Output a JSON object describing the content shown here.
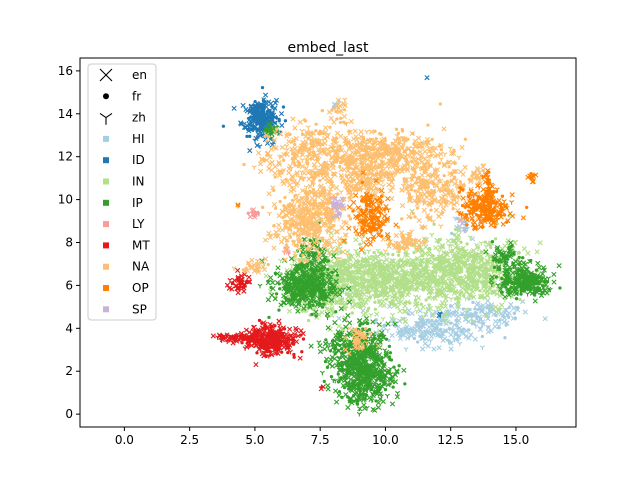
{
  "chart_data": {
    "type": "scatter",
    "title": "embed_last",
    "xlabel": "",
    "ylabel": "",
    "xlim": [
      -1.7,
      17.3
    ],
    "ylim": [
      -0.6,
      16.6
    ],
    "xticks": [
      0.0,
      2.5,
      5.0,
      7.5,
      10.0,
      12.5,
      15.0
    ],
    "xtick_labels": [
      "0.0",
      "2.5",
      "5.0",
      "7.5",
      "10.0",
      "12.5",
      "15.0"
    ],
    "yticks": [
      0,
      2,
      4,
      6,
      8,
      10,
      12,
      14,
      16
    ],
    "ytick_labels": [
      "0",
      "2",
      "4",
      "6",
      "8",
      "10",
      "12",
      "14",
      "16"
    ],
    "grid": false,
    "legend_position": "upper-left",
    "marker_legend": [
      {
        "label": "en",
        "marker": "x"
      },
      {
        "label": "fr",
        "marker": "circle"
      },
      {
        "label": "zh",
        "marker": "tri-down"
      }
    ],
    "series": [
      {
        "name": "HI",
        "color": "#a6cee3",
        "clusters": [
          {
            "cx": 11.7,
            "cy": 4.0,
            "sx": 1.0,
            "sy": 0.4,
            "n": 200
          },
          {
            "cx": 13.5,
            "cy": 4.6,
            "sx": 0.8,
            "sy": 0.4,
            "n": 120
          },
          {
            "cx": 8.1,
            "cy": 14.5,
            "sx": 0.1,
            "sy": 0.15,
            "n": 6
          },
          {
            "cx": 12.8,
            "cy": 8.7,
            "sx": 0.3,
            "sy": 0.2,
            "n": 15
          }
        ]
      },
      {
        "name": "ID",
        "color": "#1f78b4",
        "clusters": [
          {
            "cx": 5.2,
            "cy": 13.8,
            "sx": 0.35,
            "sy": 0.45,
            "n": 260
          },
          {
            "cx": 11.6,
            "cy": 15.7,
            "sx": 0.02,
            "sy": 0.02,
            "n": 1
          },
          {
            "cx": 12.1,
            "cy": 4.6,
            "sx": 0.05,
            "sy": 0.05,
            "n": 3
          }
        ]
      },
      {
        "name": "IN",
        "color": "#b2df8a",
        "clusters": [
          {
            "cx": 10.0,
            "cy": 6.3,
            "sx": 1.4,
            "sy": 0.75,
            "n": 700
          },
          {
            "cx": 13.2,
            "cy": 6.6,
            "sx": 1.1,
            "sy": 0.8,
            "n": 600
          },
          {
            "cx": 7.8,
            "cy": 5.8,
            "sx": 0.9,
            "sy": 0.6,
            "n": 250
          },
          {
            "cx": 8.0,
            "cy": 6.8,
            "sx": 0.9,
            "sy": 0.4,
            "n": 120
          }
        ]
      },
      {
        "name": "IP",
        "color": "#33a02c",
        "clusters": [
          {
            "cx": 6.9,
            "cy": 5.9,
            "sx": 0.6,
            "sy": 0.5,
            "n": 400
          },
          {
            "cx": 9.2,
            "cy": 1.8,
            "sx": 0.55,
            "sy": 0.7,
            "n": 450
          },
          {
            "cx": 8.9,
            "cy": 3.2,
            "sx": 0.6,
            "sy": 0.5,
            "n": 250
          },
          {
            "cx": 15.4,
            "cy": 6.2,
            "sx": 0.5,
            "sy": 0.35,
            "n": 260
          },
          {
            "cx": 14.6,
            "cy": 7.3,
            "sx": 0.25,
            "sy": 0.3,
            "n": 60
          },
          {
            "cx": 7.2,
            "cy": 7.4,
            "sx": 0.3,
            "sy": 0.4,
            "n": 70
          },
          {
            "cx": 5.6,
            "cy": 13.2,
            "sx": 0.2,
            "sy": 0.15,
            "n": 25
          }
        ]
      },
      {
        "name": "LY",
        "color": "#fb9a99",
        "clusters": [
          {
            "cx": 5.0,
            "cy": 9.3,
            "sx": 0.1,
            "sy": 0.1,
            "n": 14
          },
          {
            "cx": 6.2,
            "cy": 7.6,
            "sx": 0.1,
            "sy": 0.1,
            "n": 6
          },
          {
            "cx": 8.0,
            "cy": 9.7,
            "sx": 0.1,
            "sy": 0.15,
            "n": 6
          }
        ]
      },
      {
        "name": "MT",
        "color": "#e31a1c",
        "clusters": [
          {
            "cx": 5.6,
            "cy": 3.5,
            "sx": 0.5,
            "sy": 0.35,
            "n": 300
          },
          {
            "cx": 4.3,
            "cy": 3.55,
            "sx": 0.4,
            "sy": 0.08,
            "n": 60
          },
          {
            "cx": 4.4,
            "cy": 6.1,
            "sx": 0.2,
            "sy": 0.25,
            "n": 40
          },
          {
            "cx": 7.6,
            "cy": 1.3,
            "sx": 0.05,
            "sy": 0.05,
            "n": 3
          },
          {
            "cx": 6.8,
            "cy": 3.6,
            "sx": 0.05,
            "sy": 0.05,
            "n": 2
          }
        ]
      },
      {
        "name": "NA",
        "color": "#fdbf6f",
        "clusters": [
          {
            "cx": 7.2,
            "cy": 9.2,
            "sx": 0.7,
            "sy": 0.85,
            "n": 450
          },
          {
            "cx": 10.0,
            "cy": 12.1,
            "sx": 1.1,
            "sy": 0.55,
            "n": 400
          },
          {
            "cx": 7.3,
            "cy": 12.1,
            "sx": 1.0,
            "sy": 0.7,
            "n": 300
          },
          {
            "cx": 11.8,
            "cy": 10.4,
            "sx": 0.8,
            "sy": 0.7,
            "n": 250
          },
          {
            "cx": 9.2,
            "cy": 10.9,
            "sx": 0.6,
            "sy": 0.5,
            "n": 150
          },
          {
            "cx": 10.8,
            "cy": 8.0,
            "sx": 0.4,
            "sy": 0.25,
            "n": 60
          },
          {
            "cx": 4.9,
            "cy": 6.8,
            "sx": 0.25,
            "sy": 0.15,
            "n": 30
          },
          {
            "cx": 9.0,
            "cy": 3.5,
            "sx": 0.25,
            "sy": 0.25,
            "n": 40
          },
          {
            "cx": 8.2,
            "cy": 14.2,
            "sx": 0.2,
            "sy": 0.3,
            "n": 20
          },
          {
            "cx": 13.5,
            "cy": 11.2,
            "sx": 0.15,
            "sy": 0.4,
            "n": 20
          }
        ]
      },
      {
        "name": "OP",
        "color": "#ff7f00",
        "clusters": [
          {
            "cx": 13.8,
            "cy": 9.6,
            "sx": 0.45,
            "sy": 0.45,
            "n": 220
          },
          {
            "cx": 9.5,
            "cy": 9.2,
            "sx": 0.35,
            "sy": 0.65,
            "n": 150
          },
          {
            "cx": 15.6,
            "cy": 11.0,
            "sx": 0.1,
            "sy": 0.1,
            "n": 12
          },
          {
            "cx": 13.9,
            "cy": 10.8,
            "sx": 0.1,
            "sy": 0.4,
            "n": 25
          },
          {
            "cx": 4.4,
            "cy": 9.7,
            "sx": 0.04,
            "sy": 0.04,
            "n": 2
          }
        ]
      },
      {
        "name": "SP",
        "color": "#cab2d6",
        "clusters": [
          {
            "cx": 8.2,
            "cy": 9.7,
            "sx": 0.15,
            "sy": 0.25,
            "n": 25
          },
          {
            "cx": 13.0,
            "cy": 8.9,
            "sx": 0.1,
            "sy": 0.1,
            "n": 4
          }
        ]
      }
    ]
  }
}
